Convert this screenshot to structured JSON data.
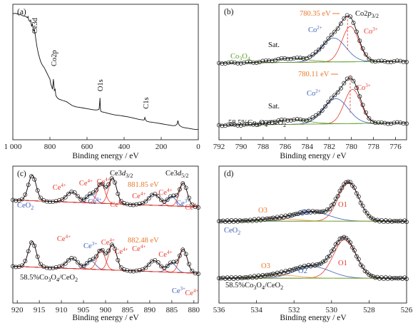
{
  "chart_data": [
    {
      "panel": "(a)",
      "type": "line",
      "xlabel": "Binding energy / eV",
      "xlim": [
        1000,
        0
      ],
      "xticks": [
        "1 000",
        "800",
        "600",
        "400",
        "200",
        "0"
      ],
      "xtick_values": [
        1000,
        800,
        600,
        400,
        200,
        0
      ],
      "annotations": [
        {
          "text": "Ce3d",
          "x": 885,
          "y": 0.8,
          "rotate": true
        },
        {
          "text": "Co2p",
          "x": 781,
          "y": 0.54,
          "rotate": true
        },
        {
          "text": "O1s",
          "x": 530,
          "y": 0.34,
          "rotate": true
        },
        {
          "text": "C1s",
          "x": 285,
          "y": 0.2,
          "rotate": true
        }
      ],
      "series": [
        {
          "color": "#111111",
          "x": [
            1000,
            990,
            975,
            960,
            945,
            930,
            922,
            918,
            914,
            908,
            904,
            899,
            895,
            888,
            884,
            880,
            876,
            870,
            862,
            850,
            840,
            830,
            820,
            810,
            800,
            795,
            790,
            786,
            781,
            776,
            772,
            768,
            760,
            750,
            740,
            730,
            720,
            710,
            700,
            690,
            680,
            670,
            660,
            640,
            620,
            600,
            580,
            560,
            545,
            535,
            532,
            530,
            528,
            526,
            520,
            505,
            480,
            450,
            420,
            400,
            380,
            350,
            320,
            300,
            292,
            288,
            285,
            282,
            278,
            265,
            240,
            220,
            200,
            180,
            160,
            140,
            125,
            115,
            110,
            105,
            100,
            90,
            80,
            60,
            40,
            20,
            0
          ],
          "y": [
            0.98,
            0.985,
            0.98,
            0.975,
            0.965,
            0.96,
            0.95,
            0.96,
            0.93,
            0.92,
            0.93,
            0.88,
            0.9,
            0.84,
            0.86,
            0.82,
            0.78,
            0.72,
            0.66,
            0.6,
            0.57,
            0.55,
            0.52,
            0.49,
            0.46,
            0.42,
            0.4,
            0.38,
            0.46,
            0.37,
            0.38,
            0.33,
            0.31,
            0.3,
            0.295,
            0.29,
            0.285,
            0.28,
            0.27,
            0.26,
            0.25,
            0.245,
            0.24,
            0.235,
            0.23,
            0.225,
            0.22,
            0.215,
            0.215,
            0.22,
            0.27,
            0.31,
            0.23,
            0.205,
            0.2,
            0.195,
            0.185,
            0.175,
            0.17,
            0.165,
            0.16,
            0.15,
            0.14,
            0.135,
            0.135,
            0.155,
            0.14,
            0.13,
            0.125,
            0.12,
            0.115,
            0.11,
            0.105,
            0.1,
            0.095,
            0.09,
            0.09,
            0.1,
            0.13,
            0.1,
            0.09,
            0.08,
            0.075,
            0.07,
            0.065,
            0.06,
            0.06
          ]
        }
      ]
    },
    {
      "panel": "(b)",
      "type": "line",
      "xlabel": "Binding energy / eV",
      "xlim": [
        792,
        775
      ],
      "xticks": [
        "792",
        "790",
        "788",
        "786",
        "784",
        "782",
        "780",
        "778",
        "776"
      ],
      "xtick_values": [
        792,
        790,
        788,
        786,
        784,
        782,
        780,
        778,
        776
      ],
      "labels": {
        "sample_top": "Co3O4",
        "sample_bottom": "58.5%Co3O4/CeO2",
        "sat": "Sat.",
        "co2": "Co2+",
        "co3": "Co3+",
        "peak_title": "Co2p3/2",
        "peak_top": "780.35 eV",
        "peak_bottom": "780.11 eV"
      },
      "peak_positions": {
        "top": 780.35,
        "bottom": 780.11
      }
    },
    {
      "panel": "(c)",
      "type": "line",
      "xlabel": "Binding energy / eV",
      "xlim": [
        921,
        879
      ],
      "xticks": [
        "920",
        "915",
        "910",
        "905",
        "900",
        "895",
        "890",
        "885",
        "880"
      ],
      "xtick_values": [
        920,
        915,
        910,
        905,
        900,
        895,
        890,
        885,
        880
      ],
      "labels": {
        "sample_top": "CeO2",
        "sample_bottom": "58.5%Co3O4/CeO2",
        "ce3": "Ce3+",
        "ce4": "Ce4+",
        "d32": "Ce3d3/2",
        "d52": "Ce3d5/2",
        "peak_top": "881.85 eV",
        "peak_bottom": "882.48 eV"
      },
      "peak_positions": {
        "top": 881.85,
        "bottom": 882.48
      }
    },
    {
      "panel": "(d)",
      "type": "line",
      "xlabel": "Binding energy / eV",
      "xlim": [
        536,
        526
      ],
      "xticks": [
        "536",
        "534",
        "532",
        "530",
        "528",
        "526"
      ],
      "xtick_values": [
        536,
        534,
        532,
        530,
        528,
        526
      ],
      "labels": {
        "sample_top": "CeO2",
        "sample_bottom": "58.5%Co3O4/CeO2",
        "o1": "O1",
        "o2": "O2",
        "o3": "O3"
      }
    }
  ],
  "colors": {
    "co2": "#3a5fb8",
    "co3": "#e8382c",
    "peak": "#e8782a",
    "green": "#5aa02c",
    "ce3": "#3a5fb8",
    "ce4": "#e8382c",
    "fit_red": "#e8382c",
    "fit_blue": "#3a5fb8",
    "fit_orange": "#f0a040",
    "baseline": "#e03a2a"
  }
}
